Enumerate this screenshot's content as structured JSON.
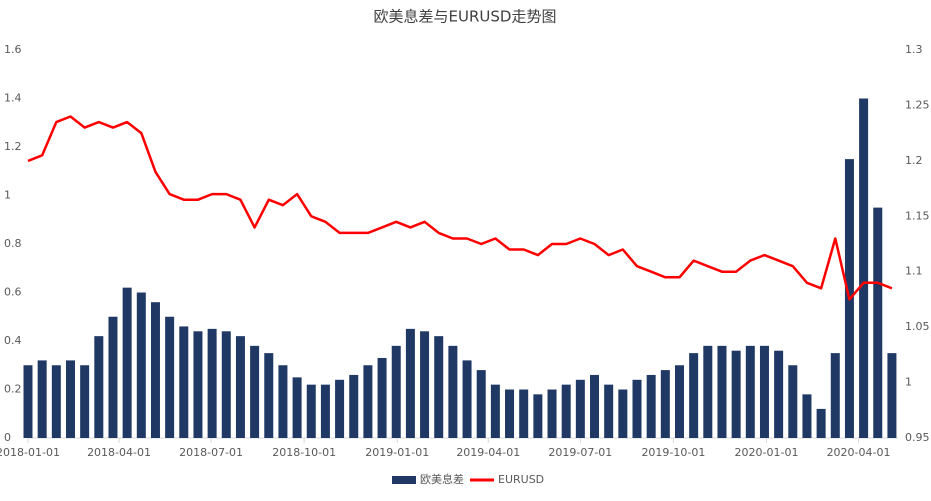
{
  "chart_data": {
    "type": "bar-line",
    "title": "欧美息差与EURUSD走势图",
    "x": [
      "2018-01-01",
      "2018-01-15",
      "2018-01-29",
      "2018-02-12",
      "2018-02-26",
      "2018-03-12",
      "2018-03-26",
      "2018-04-09",
      "2018-04-23",
      "2018-05-07",
      "2018-05-21",
      "2018-06-04",
      "2018-06-18",
      "2018-07-02",
      "2018-07-16",
      "2018-07-30",
      "2018-08-13",
      "2018-08-27",
      "2018-09-10",
      "2018-09-24",
      "2018-10-08",
      "2018-10-22",
      "2018-11-05",
      "2018-11-19",
      "2018-12-03",
      "2018-12-17",
      "2018-12-31",
      "2019-01-14",
      "2019-01-28",
      "2019-02-11",
      "2019-02-25",
      "2019-03-11",
      "2019-03-25",
      "2019-04-08",
      "2019-04-22",
      "2019-05-06",
      "2019-05-20",
      "2019-06-03",
      "2019-06-17",
      "2019-07-01",
      "2019-07-15",
      "2019-07-29",
      "2019-08-12",
      "2019-08-26",
      "2019-09-09",
      "2019-09-23",
      "2019-10-07",
      "2019-10-21",
      "2019-11-04",
      "2019-11-18",
      "2019-12-02",
      "2019-12-16",
      "2019-12-30",
      "2020-01-13",
      "2020-01-27",
      "2020-02-10",
      "2020-02-24",
      "2020-03-09",
      "2020-03-23",
      "2020-04-06",
      "2020-04-20",
      "2020-05-04"
    ],
    "series": [
      {
        "name": "欧美息差",
        "color": "#1f3864",
        "axis": "y",
        "values": [
          0.3,
          0.32,
          0.3,
          0.32,
          0.3,
          0.42,
          0.5,
          0.62,
          0.6,
          0.56,
          0.5,
          0.46,
          0.44,
          0.45,
          0.44,
          0.42,
          0.38,
          0.35,
          0.3,
          0.25,
          0.22,
          0.22,
          0.24,
          0.26,
          0.3,
          0.33,
          0.38,
          0.45,
          0.44,
          0.42,
          0.38,
          0.32,
          0.28,
          0.22,
          0.2,
          0.2,
          0.18,
          0.2,
          0.22,
          0.24,
          0.26,
          0.22,
          0.2,
          0.24,
          0.26,
          0.28,
          0.3,
          0.35,
          0.38,
          0.38,
          0.36,
          0.38,
          0.38,
          0.36,
          0.3,
          0.18,
          0.12,
          0.35,
          1.15,
          1.4,
          0.95,
          0.35
        ]
      },
      {
        "name": "EURUSD",
        "color": "#ff0000",
        "axis": "y2",
        "values": [
          1.2,
          1.205,
          1.235,
          1.24,
          1.23,
          1.235,
          1.23,
          1.235,
          1.225,
          1.19,
          1.17,
          1.165,
          1.165,
          1.17,
          1.17,
          1.165,
          1.14,
          1.165,
          1.16,
          1.17,
          1.15,
          1.145,
          1.135,
          1.135,
          1.135,
          1.14,
          1.145,
          1.14,
          1.145,
          1.135,
          1.13,
          1.13,
          1.125,
          1.13,
          1.12,
          1.12,
          1.115,
          1.125,
          1.125,
          1.13,
          1.125,
          1.115,
          1.12,
          1.105,
          1.1,
          1.095,
          1.095,
          1.11,
          1.105,
          1.1,
          1.1,
          1.11,
          1.115,
          1.11,
          1.105,
          1.09,
          1.085,
          1.13,
          1.075,
          1.09,
          1.09,
          1.085
        ]
      }
    ],
    "xlim": [
      "2018-01-01",
      "2020-05-10"
    ],
    "xticks": [
      "2018-01-01",
      "2018-04-01",
      "2018-07-01",
      "2018-10-01",
      "2019-01-01",
      "2019-04-01",
      "2019-07-01",
      "2019-10-01",
      "2020-01-01",
      "2020-04-01"
    ],
    "ylim": [
      0,
      1.6
    ],
    "yticks": [
      0,
      0.2,
      0.4,
      0.6,
      0.8,
      1,
      1.2,
      1.4,
      1.6
    ],
    "y2lim": [
      0.95,
      1.3
    ],
    "y2ticks": [
      0.95,
      1,
      1.05,
      1.1,
      1.15,
      1.2,
      1.25,
      1.3
    ],
    "legend": "bottom"
  }
}
